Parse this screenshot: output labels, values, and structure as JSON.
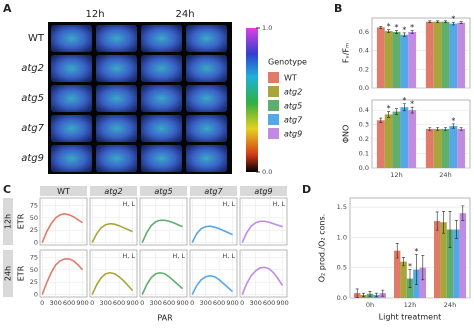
{
  "panel_labels": {
    "a": "A",
    "b": "B",
    "c": "C",
    "d": "D"
  },
  "image_grid": {
    "columns": [
      "12h",
      "24h"
    ],
    "rows": [
      "WT",
      "atg2",
      "atg5",
      "atg7",
      "atg9"
    ],
    "colorbar": {
      "lim": [
        0,
        1
      ],
      "ticks": [
        {
          "value": 1,
          "label": "1.0"
        },
        {
          "value": 0,
          "label": "0.0"
        }
      ]
    }
  },
  "legend_title": "Genotype",
  "chart_data": [
    {
      "type": "bar",
      "y_label": "Fᵥ/Fₘ",
      "ylim": [
        0,
        0.75
      ],
      "yticks": [
        {
          "value": 0,
          "label": "0.0"
        },
        0.2,
        0.4,
        0.6
      ],
      "series": [
        {
          "name": "WT",
          "color": "#e07b6a",
          "values": [
            0.65,
            0.71
          ],
          "errors": [
            0.01,
            0.01
          ],
          "stars": [
            null,
            null
          ]
        },
        {
          "name": "atg2",
          "color": "#a8a53a",
          "values": [
            0.61,
            0.71
          ],
          "errors": [
            0.015,
            0.01
          ],
          "stars": [
            "*",
            null
          ]
        },
        {
          "name": "atg5",
          "color": "#5fae6e",
          "values": [
            0.6,
            0.71
          ],
          "errors": [
            0.015,
            0.01
          ],
          "stars": [
            "*",
            null
          ]
        },
        {
          "name": "atg7",
          "color": "#55a8e8",
          "values": [
            0.57,
            0.69
          ],
          "errors": [
            0.02,
            0.015
          ],
          "stars": [
            "*",
            "*"
          ]
        },
        {
          "name": "atg9",
          "color": "#c08be0",
          "values": [
            0.6,
            0.7
          ],
          "errors": [
            0.015,
            0.01
          ],
          "stars": [
            "*",
            null
          ]
        }
      ]
    },
    {
      "type": "bar",
      "y_label": "ΦNO",
      "ylim": [
        0,
        0.47
      ],
      "categories": [
        "12h",
        "24h"
      ],
      "yticks": [
        {
          "value": 0,
          "label": "0.0"
        },
        0.1,
        0.2,
        0.3,
        0.4
      ],
      "series": [
        {
          "color": "#e07b6a",
          "values": [
            0.33,
            0.27
          ],
          "errors": [
            0.015,
            0.01
          ],
          "stars": [
            null,
            null
          ]
        },
        {
          "color": "#a8a53a",
          "values": [
            0.37,
            0.27
          ],
          "errors": [
            0.02,
            0.01
          ],
          "stars": [
            "*",
            null
          ]
        },
        {
          "color": "#5fae6e",
          "values": [
            0.39,
            0.27
          ],
          "errors": [
            0.02,
            0.01
          ],
          "stars": [
            null,
            null
          ]
        },
        {
          "color": "#55a8e8",
          "values": [
            0.42,
            0.29
          ],
          "errors": [
            0.025,
            0.015
          ],
          "stars": [
            "*",
            "*"
          ]
        },
        {
          "color": "#c08be0",
          "values": [
            0.4,
            0.27
          ],
          "errors": [
            0.02,
            0.01
          ],
          "stars": [
            "*",
            null
          ]
        }
      ]
    },
    {
      "type": "line",
      "x_label": "PAR",
      "y_label": "ETR",
      "row_labels": [
        "12h",
        "24h"
      ],
      "x": [
        0,
        100,
        200,
        300,
        400,
        500,
        600,
        700,
        800,
        900
      ],
      "xlim": [
        -50,
        1000
      ],
      "xticks": [
        0,
        300,
        600,
        900
      ],
      "ylim": [
        -5,
        90
      ],
      "yticks": [
        0,
        25,
        50,
        75
      ],
      "series": [
        {
          "name": "WT",
          "color": "#e07b6a",
          "rows": [
            {
              "values": [
                0,
                22,
                38,
                50,
                56,
                58,
                56,
                52,
                46,
                40
              ],
              "note": null
            },
            {
              "values": [
                0,
                24,
                44,
                60,
                68,
                72,
                72,
                68,
                60,
                50
              ],
              "note": null
            }
          ]
        },
        {
          "name": "atg2",
          "color": "#a8a53a",
          "rows": [
            {
              "values": [
                0,
                18,
                30,
                36,
                38,
                37,
                34,
                30,
                26,
                22
              ],
              "note": "H, L"
            },
            {
              "values": [
                0,
                20,
                34,
                42,
                44,
                42,
                36,
                28,
                18,
                8
              ],
              "note": "H, L"
            }
          ]
        },
        {
          "name": "atg5",
          "color": "#5fae6e",
          "rows": [
            {
              "values": [
                0,
                20,
                34,
                42,
                45,
                45,
                43,
                40,
                36,
                32
              ],
              "note": null
            },
            {
              "values": [
                0,
                20,
                34,
                42,
                44,
                42,
                36,
                28,
                20,
                12
              ],
              "note": "H, L"
            }
          ]
        },
        {
          "name": "atg7",
          "color": "#55a8e8",
          "rows": [
            {
              "values": [
                0,
                18,
                28,
                32,
                33,
                31,
                28,
                24,
                20,
                16
              ],
              "note": "H, L"
            },
            {
              "values": [
                0,
                18,
                30,
                36,
                38,
                36,
                30,
                22,
                14,
                6
              ],
              "note": "H, L"
            }
          ]
        },
        {
          "name": "atg9",
          "color": "#c08be0",
          "rows": [
            {
              "values": [
                0,
                20,
                33,
                40,
                43,
                43,
                41,
                38,
                35,
                32
              ],
              "note": "H, L"
            },
            {
              "values": [
                0,
                22,
                38,
                48,
                54,
                55,
                52,
                44,
                32,
                18
              ],
              "note": null
            }
          ]
        }
      ]
    },
    {
      "type": "bar",
      "y_label": "O₂ prod./O₂ cons.",
      "x_label": "Light treatment",
      "ylim": [
        0,
        1.65
      ],
      "categories": [
        "0h",
        "12h",
        "24h"
      ],
      "yticks": [
        {
          "value": 0,
          "label": "0.0"
        },
        0.5,
        {
          "value": 1,
          "label": "1.0"
        },
        1.5
      ],
      "series": [
        {
          "color": "#e07b6a",
          "values": [
            0.08,
            0.78,
            1.27
          ],
          "errors": [
            0.07,
            0.12,
            0.15
          ],
          "stars": [
            null,
            null,
            null
          ]
        },
        {
          "color": "#a8a53a",
          "values": [
            0.05,
            0.6,
            1.25
          ],
          "errors": [
            0.03,
            0.07,
            0.18
          ],
          "stars": [
            null,
            null,
            null
          ]
        },
        {
          "color": "#5fae6e",
          "values": [
            0.07,
            0.32,
            1.13
          ],
          "errors": [
            0.04,
            0.15,
            0.3
          ],
          "stars": [
            null,
            "*",
            null
          ]
        },
        {
          "color": "#55a8e8",
          "values": [
            0.05,
            0.47,
            1.13
          ],
          "errors": [
            0.03,
            0.25,
            0.15
          ],
          "stars": [
            null,
            "*",
            null
          ]
        },
        {
          "color": "#c08be0",
          "values": [
            0.08,
            0.5,
            1.4
          ],
          "errors": [
            0.05,
            0.2,
            0.12
          ],
          "stars": [
            null,
            null,
            null
          ]
        }
      ]
    }
  ]
}
